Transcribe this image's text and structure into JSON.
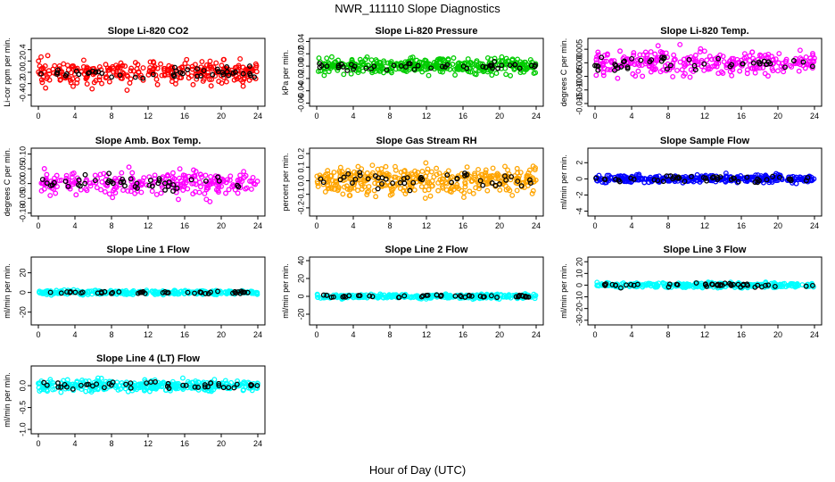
{
  "title": "NWR_111110  Slope Diagnostics",
  "xlabel": "Hour of Day (UTC)",
  "colors": {
    "red": "#ff0000",
    "green": "#00cc00",
    "magenta": "#ff00ff",
    "orange": "#ffa500",
    "blue": "#0000ff",
    "cyan": "#00ffff",
    "black": "#000000"
  },
  "chart_data": [
    {
      "type": "scatter",
      "title": "Slope Li-820 CO2",
      "ylabel": "Li-cor ppm per min.",
      "xlim": [
        0,
        24
      ],
      "ylim": [
        -0.6,
        0.6
      ],
      "xticks": [
        0,
        4,
        8,
        12,
        16,
        20,
        24
      ],
      "yticks": [
        -0.4,
        -0.2,
        0.0,
        0.2,
        0.4
      ],
      "ytick_labels": [
        "-0.4",
        "-0.2",
        "0.0",
        "0.2",
        "0.4"
      ],
      "series": [
        {
          "color": "red",
          "density": 300,
          "spread": 0.22,
          "seed": 11
        },
        {
          "color": "black",
          "density": 45,
          "spread": 0.12,
          "seed": 12
        }
      ]
    },
    {
      "type": "scatter",
      "title": "Slope Li-820 Pressure",
      "ylabel": "kPa per min.",
      "xlim": [
        0,
        24
      ],
      "ylim": [
        -0.065,
        0.045
      ],
      "xticks": [
        0,
        4,
        8,
        12,
        16,
        20,
        24
      ],
      "yticks": [
        -0.06,
        -0.04,
        -0.02,
        0.0,
        0.02,
        0.04
      ],
      "ytick_labels": [
        "-0.06",
        "-0.04",
        "-0.02",
        "0.00",
        "0.02",
        "0.04"
      ],
      "series": [
        {
          "color": "green",
          "density": 360,
          "spread": 0.012,
          "seed": 21
        },
        {
          "color": "black",
          "density": 45,
          "spread": 0.006,
          "seed": 22
        }
      ]
    },
    {
      "type": "scatter",
      "title": "Slope Li-820 Temp.",
      "ylabel": "degrees C per min.",
      "xlim": [
        0,
        24
      ],
      "ylim": [
        -0.016,
        0.009
      ],
      "xticks": [
        0,
        4,
        8,
        12,
        16,
        20,
        24
      ],
      "yticks": [
        -0.015,
        -0.01,
        -0.005,
        0.0,
        0.005
      ],
      "ytick_labels": [
        "-0.015",
        "-0.010",
        "-0.005",
        "0.000",
        "0.005"
      ],
      "series": [
        {
          "color": "magenta",
          "density": 280,
          "spread": 0.0045,
          "seed": 31
        },
        {
          "color": "black",
          "density": 45,
          "spread": 0.0025,
          "seed": 32
        }
      ]
    },
    {
      "type": "scatter",
      "title": "Slope Amb. Box Temp.",
      "ylabel": "degrees C per min.",
      "xlim": [
        0,
        24
      ],
      "ylim": [
        -0.11,
        0.12
      ],
      "xticks": [
        0,
        4,
        8,
        12,
        16,
        20,
        24
      ],
      "yticks": [
        -0.1,
        -0.05,
        0.0,
        0.05,
        0.1
      ],
      "ytick_labels": [
        "-0.10",
        "-0.05",
        "0.00",
        "0.05",
        "0.10"
      ],
      "series": [
        {
          "color": "magenta",
          "density": 250,
          "spread": 0.04,
          "seed": 41
        },
        {
          "color": "black",
          "density": 45,
          "spread": 0.025,
          "seed": 42
        }
      ]
    },
    {
      "type": "scatter",
      "title": "Slope Gas Stream RH",
      "ylabel": "percent per min.",
      "xlim": [
        0,
        24
      ],
      "ylim": [
        -0.26,
        0.24
      ],
      "xticks": [
        0,
        4,
        8,
        12,
        16,
        20,
        24
      ],
      "yticks": [
        -0.2,
        -0.1,
        0.0,
        0.1,
        0.2
      ],
      "ytick_labels": [
        "-0.2",
        "-0.1",
        "0.0",
        "0.1",
        "0.2"
      ],
      "series": [
        {
          "color": "orange",
          "density": 380,
          "spread": 0.09,
          "seed": 51
        },
        {
          "color": "black",
          "density": 45,
          "spread": 0.06,
          "seed": 52
        }
      ]
    },
    {
      "type": "scatter",
      "title": "Slope Sample Flow",
      "ylabel": "ml/min per min.",
      "xlim": [
        0,
        24
      ],
      "ylim": [
        -4.6,
        3.8
      ],
      "xticks": [
        0,
        4,
        8,
        12,
        16,
        20,
        24
      ],
      "yticks": [
        -4,
        -2,
        0,
        2
      ],
      "ytick_labels": [
        "-4",
        "-2",
        "0",
        "2"
      ],
      "series": [
        {
          "color": "blue",
          "density": 320,
          "spread": 0.45,
          "seed": 61
        },
        {
          "color": "black",
          "density": 45,
          "spread": 0.35,
          "seed": 62
        }
      ]
    },
    {
      "type": "scatter",
      "title": "Slope Line 1 Flow",
      "ylabel": "ml/min per min.",
      "xlim": [
        0,
        24
      ],
      "ylim": [
        -33,
        36
      ],
      "xticks": [
        0,
        4,
        8,
        12,
        16,
        20,
        24
      ],
      "yticks": [
        -20,
        0,
        20
      ],
      "ytick_labels": [
        "-20",
        "0",
        "20"
      ],
      "series": [
        {
          "color": "cyan",
          "density": 300,
          "spread": 2.2,
          "seed": 71
        },
        {
          "color": "black",
          "density": 45,
          "spread": 1.2,
          "seed": 72
        }
      ]
    },
    {
      "type": "scatter",
      "title": "Slope Line 2 Flow",
      "ylabel": "ml/min per min.",
      "xlim": [
        0,
        24
      ],
      "ylim": [
        -32,
        44
      ],
      "xticks": [
        0,
        4,
        8,
        12,
        16,
        20,
        24
      ],
      "yticks": [
        -20,
        0,
        20,
        40
      ],
      "ytick_labels": [
        "-20",
        "0",
        "20",
        "40"
      ],
      "series": [
        {
          "color": "cyan",
          "density": 300,
          "spread": 2.5,
          "seed": 81
        },
        {
          "color": "black",
          "density": 45,
          "spread": 1.5,
          "seed": 82
        }
      ]
    },
    {
      "type": "scatter",
      "title": "Slope Line 3 Flow",
      "ylabel": "ml/min per min.",
      "xlim": [
        0,
        24
      ],
      "ylim": [
        -34,
        24
      ],
      "xticks": [
        0,
        4,
        8,
        12,
        16,
        20,
        24
      ],
      "yticks": [
        -30,
        -20,
        -10,
        0,
        10,
        20
      ],
      "ytick_labels": [
        "-30",
        "-20",
        "-10",
        "0",
        "10",
        "20"
      ],
      "series": [
        {
          "color": "cyan",
          "density": 300,
          "spread": 2.0,
          "seed": 91
        },
        {
          "color": "black",
          "density": 45,
          "spread": 1.5,
          "seed": 92
        }
      ]
    },
    {
      "type": "scatter",
      "title": "Slope Line 4 (LT) Flow",
      "ylabel": "ml/min per min.",
      "xlim": [
        0,
        24
      ],
      "ylim": [
        -1.1,
        0.45
      ],
      "xticks": [
        0,
        4,
        8,
        12,
        16,
        20,
        24
      ],
      "yticks": [
        -1.0,
        -0.5,
        0.0
      ],
      "ytick_labels": [
        "-1.0",
        "-0.5",
        "0.0"
      ],
      "series": [
        {
          "color": "cyan",
          "density": 340,
          "spread": 0.12,
          "seed": 101
        },
        {
          "color": "black",
          "density": 45,
          "spread": 0.08,
          "seed": 102
        }
      ]
    }
  ]
}
